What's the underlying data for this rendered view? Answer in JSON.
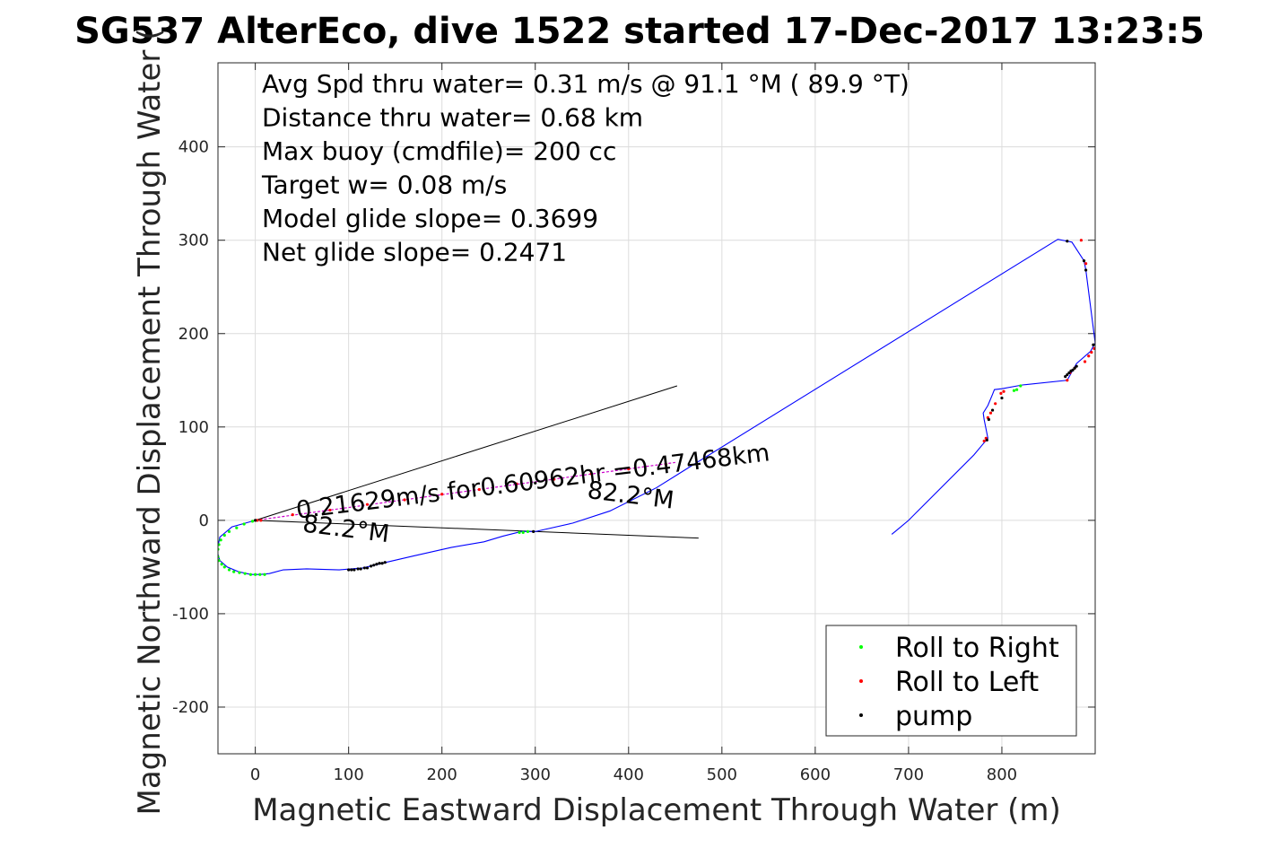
{
  "chart_data": {
    "type": "scatter",
    "title": "SG537 AlterEco, dive 1522 started 17-Dec-2017 13:23:5",
    "xlabel": "Magnetic Eastward Displacement Through Water (m)",
    "ylabel": "Magnetic Northward Displacement Through Water (",
    "xlim": [
      -40,
      900
    ],
    "ylim": [
      -250,
      490
    ],
    "xticks": [
      0,
      100,
      200,
      300,
      400,
      500,
      600,
      700,
      800
    ],
    "yticks": [
      -200,
      -100,
      0,
      100,
      200,
      300,
      400
    ],
    "grid": true,
    "legend_position": "bottom-right",
    "info_lines": [
      "Avg Spd thru water=  0.31 m/s @  91.1 °M ( 89.9 °T)",
      "Distance thru water=  0.68 km",
      "Max buoy (cmdfile)= 200 cc",
      "Target w= 0.08 m/s",
      "Model glide slope= 0.3699",
      "Net glide slope= 0.2471"
    ],
    "annotations": [
      {
        "text": "0.21629m/s for0.60962hr =0.47468km",
        "x": 45,
        "y": 2,
        "angle": 7
      },
      {
        "text": "82.2°M",
        "x": 50,
        "y": -12,
        "angle": -7
      },
      {
        "text": "82.2°M",
        "x": 355,
        "y": 24,
        "angle": -7
      }
    ],
    "black_lines": [
      {
        "x": [
          0,
          452
        ],
        "y": [
          0,
          144
        ]
      },
      {
        "x": [
          0,
          475
        ],
        "y": [
          0,
          -19
        ]
      }
    ],
    "magenta_line": {
      "x": [
        0,
        450
      ],
      "y": [
        0,
        62
      ]
    },
    "series": [
      {
        "name": "",
        "role": "track",
        "color": "#0000ff",
        "x": [
          0,
          -25,
          -38,
          -41,
          -38,
          -30,
          -18,
          -5,
          5,
          15,
          30,
          55,
          90,
          115,
          140,
          170,
          210,
          245,
          265,
          285,
          298,
          300,
          340,
          380,
          430,
          470,
          860,
          870,
          875,
          888,
          890,
          900,
          895,
          880,
          870,
          822,
          800,
          792,
          790,
          785,
          780,
          781,
          785,
          780,
          770,
          700,
          688,
          682
        ],
        "y": [
          0,
          -7,
          -18,
          -33,
          -43,
          -50,
          -55,
          -58,
          -58,
          -57,
          -53,
          -52,
          -53,
          -51,
          -45,
          -38,
          -29,
          -23,
          -17,
          -12,
          -12,
          -12,
          -3,
          10,
          35,
          60,
          301,
          299,
          298,
          278,
          268,
          190,
          181,
          168,
          150,
          145,
          141,
          140,
          135,
          123,
          115,
          108,
          88,
          82,
          70,
          0,
          -10,
          -15
        ]
      },
      {
        "name": "Roll to Right",
        "color": "#00ff00",
        "x": [
          -3,
          -12,
          -20,
          -28,
          -33,
          -37,
          -39,
          -40,
          -41,
          -40,
          -39,
          -36,
          -33,
          -28,
          -23,
          -17,
          -11,
          -5,
          0,
          5,
          10,
          283,
          287,
          292,
          813,
          816,
          820
        ],
        "y": [
          -1,
          -4,
          -8,
          -12,
          -16,
          -21,
          -26,
          -31,
          -35,
          -39,
          -43,
          -47,
          -50,
          -53,
          -55,
          -56,
          -57,
          -58,
          -58,
          -58,
          -58,
          -13,
          -13,
          -12,
          139,
          140,
          144
        ]
      },
      {
        "name": "Roll to Left",
        "color": "#ff0000",
        "x": [
          2,
          6,
          40,
          80,
          120,
          160,
          200,
          240,
          280,
          320,
          360,
          400,
          440,
          873,
          878,
          889,
          890,
          893,
          896,
          899,
          781,
          783,
          785,
          788,
          793,
          799,
          802,
          870,
          885
        ],
        "y": [
          0,
          0,
          6,
          11,
          17,
          22,
          28,
          33,
          39,
          44,
          50,
          55,
          60,
          158,
          163,
          170,
          275,
          176,
          180,
          184,
          85,
          88,
          110,
          115,
          125,
          136,
          138,
          150,
          300
        ]
      },
      {
        "name": "pump",
        "color": "#000000",
        "x": [
          0,
          300,
          100,
          103,
          106,
          110,
          113,
          117,
          120,
          124,
          127,
          130,
          133,
          136,
          139,
          298,
          868,
          870,
          872,
          874,
          876,
          878,
          880,
          784,
          786,
          790,
          800,
          870,
          888,
          890,
          898
        ],
        "y": [
          0,
          40,
          -53,
          -53,
          -53,
          -52,
          -52,
          -51,
          -51,
          -49,
          -48,
          -47,
          -46,
          -46,
          -45,
          -12,
          154,
          156,
          158,
          160,
          161,
          163,
          165,
          86,
          108,
          118,
          131,
          299,
          278,
          268,
          188
        ]
      }
    ]
  }
}
